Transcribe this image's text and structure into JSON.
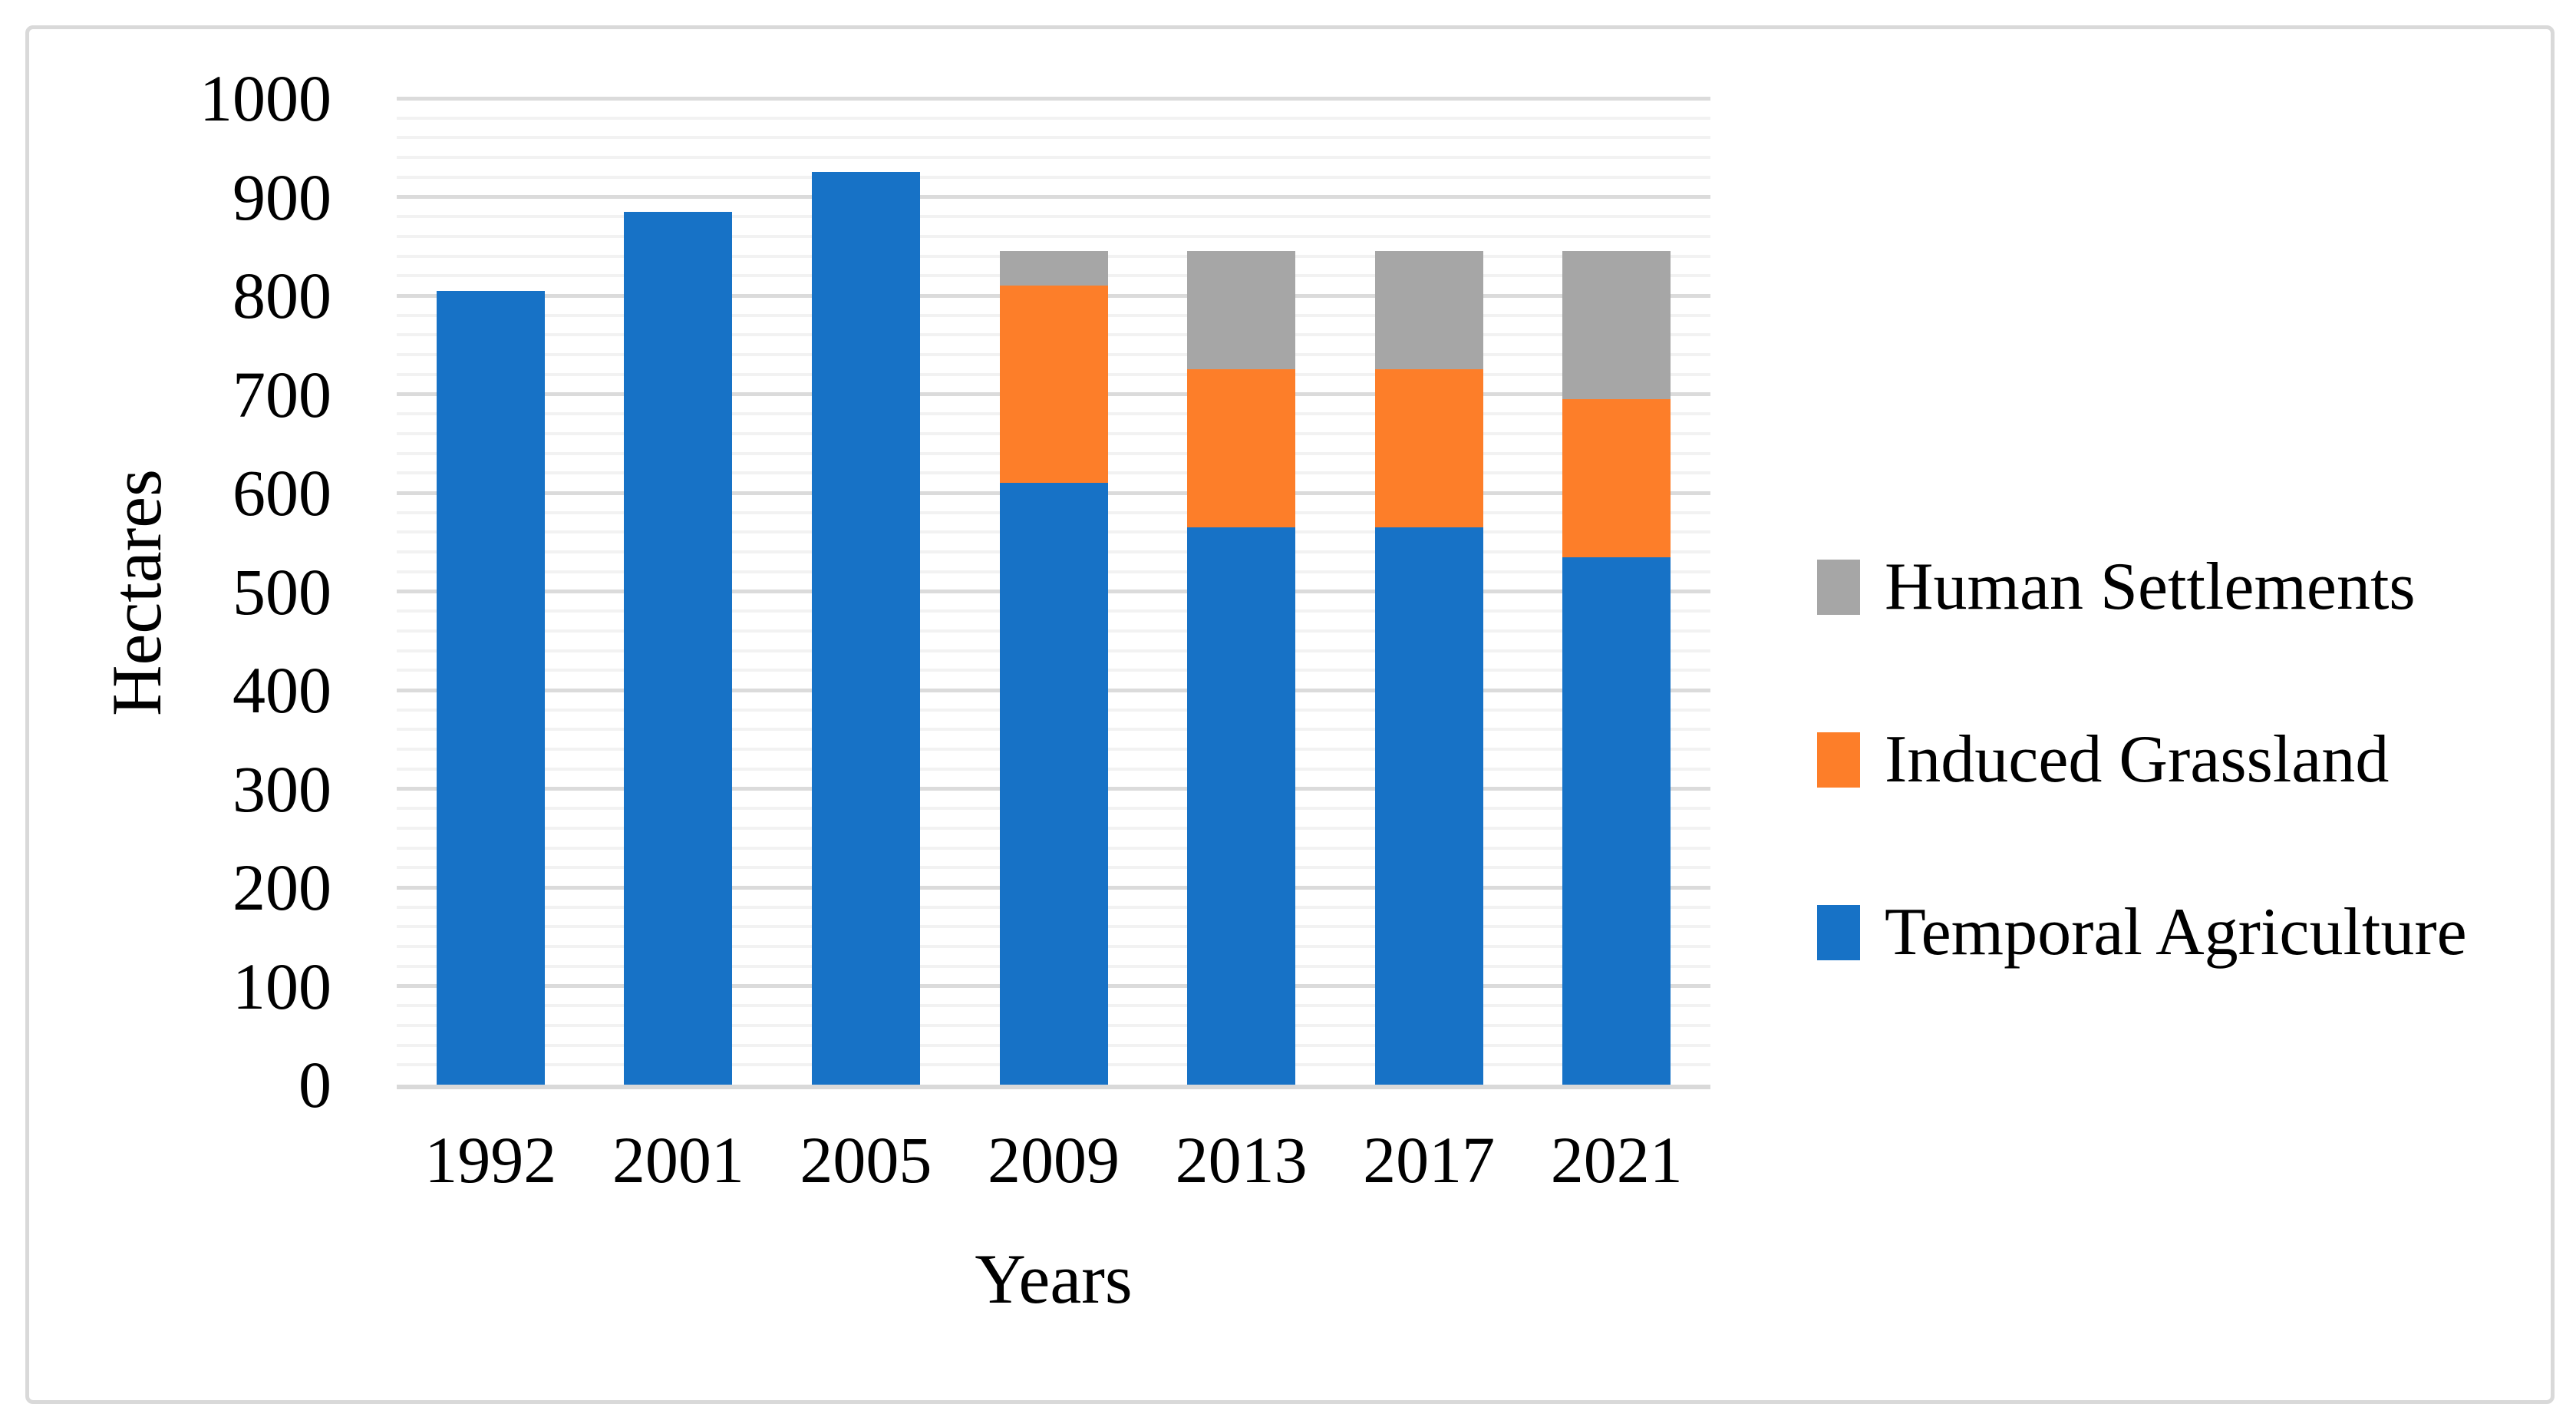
{
  "figure": {
    "background_color": "#FFFFFF",
    "border_color": "#D9D9D9"
  },
  "chart_data": {
    "type": "bar",
    "stacked": true,
    "title": "",
    "xlabel": "Years",
    "ylabel": "Hectares",
    "categories": [
      "1992",
      "2001",
      "2005",
      "2009",
      "2013",
      "2017",
      "2021"
    ],
    "series": [
      {
        "name": "Temporal Agriculture",
        "color": "#1772C6",
        "values": [
          805,
          885,
          925,
          610,
          565,
          565,
          535
        ]
      },
      {
        "name": "Induced Grassland",
        "color": "#FD7E29",
        "values": [
          0,
          0,
          0,
          200,
          160,
          160,
          160
        ]
      },
      {
        "name": "Human Settlements",
        "color": "#A6A6A6",
        "values": [
          0,
          0,
          0,
          35,
          120,
          120,
          150
        ]
      }
    ],
    "stack_totals": [
      805,
      885,
      925,
      845,
      845,
      845,
      845
    ],
    "ylim": [
      0,
      1000
    ],
    "y_tick_labels": [
      "1000",
      "900",
      "800",
      "700",
      "600",
      "500",
      "400",
      "300",
      "200",
      "100",
      "0"
    ],
    "major_grid_step": 100,
    "minor_grid_step": 20,
    "grid": true,
    "major_grid_color": "#DBDBDB",
    "minor_grid_color": "#F2F2F2",
    "axis_line_color": "#D9D9D9",
    "legend_position": "right"
  },
  "legend": {
    "items": [
      {
        "label": "Human Settlements",
        "color": "#A6A6A6",
        "swatch": "gray-square"
      },
      {
        "label": "Induced Grassland",
        "color": "#FD7E29",
        "swatch": "orange-square"
      },
      {
        "label": "Temporal Agriculture",
        "color": "#1772C6",
        "swatch": "blue-square"
      }
    ]
  }
}
